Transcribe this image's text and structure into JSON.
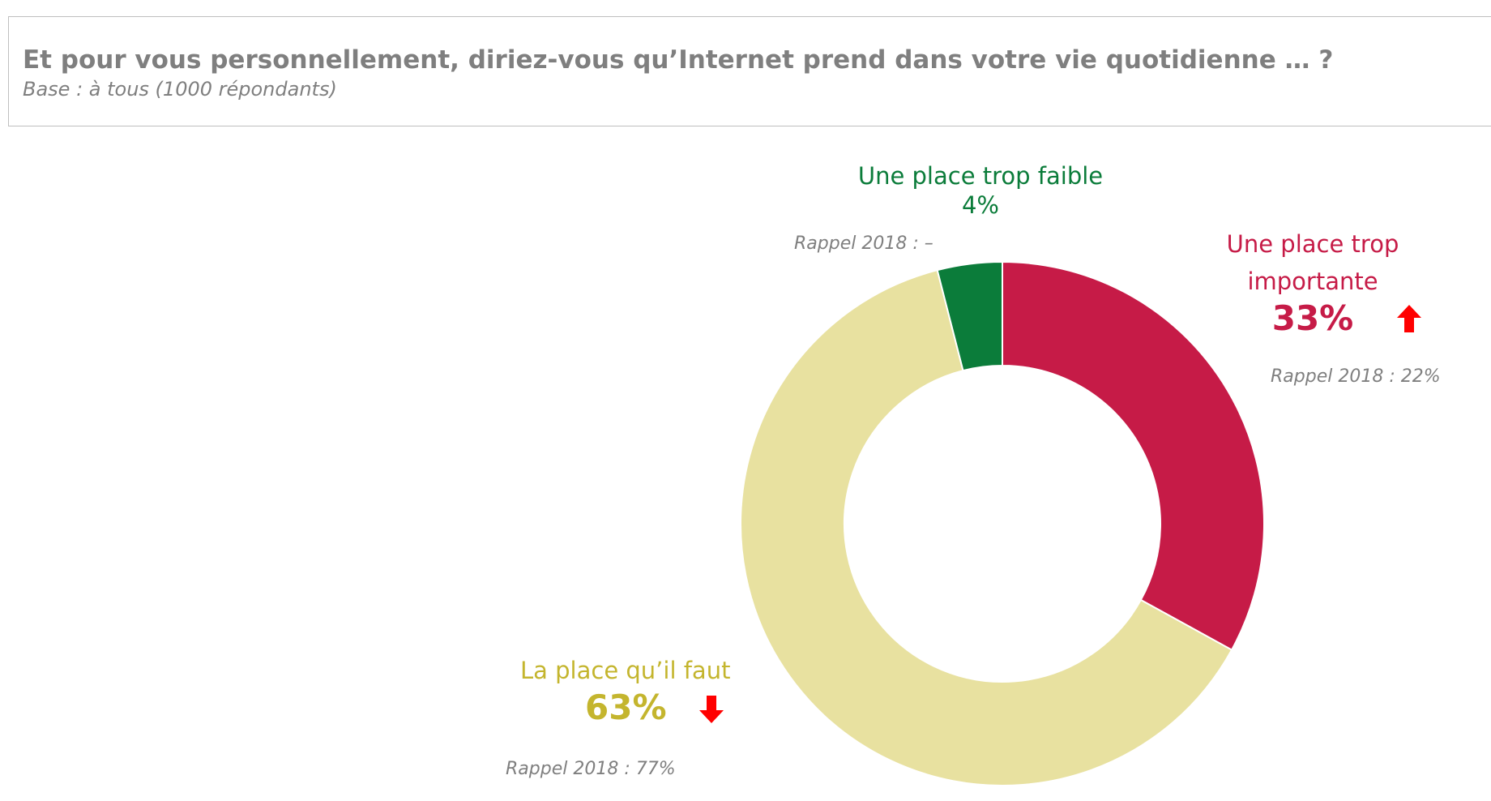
{
  "header": {
    "title": "Et pour vous personnellement, diriez-vous qu’Internet prend dans votre vie quotidienne … ?",
    "subtitle": "Base : à tous (1000 répondants)"
  },
  "labels": {
    "faible": {
      "name": "Une place trop faible",
      "value": "4%",
      "rappel": "Rappel 2018 : –"
    },
    "importante": {
      "name_line1": "Une place trop",
      "name_line2": "importante",
      "value": "33%",
      "rappel": "Rappel 2018 : 22%",
      "trend": "up"
    },
    "faut": {
      "name": "La place qu’il faut",
      "value": "63%",
      "rappel": "Rappel 2018 : 77%",
      "trend": "down"
    }
  },
  "chart_data": {
    "type": "pie",
    "variant": "donut",
    "title": "Et pour vous personnellement, diriez-vous qu’Internet prend dans votre vie quotidienne … ?",
    "categories": [
      "Une place trop importante",
      "La place qu’il faut",
      "Une place trop faible"
    ],
    "values": [
      33,
      63,
      4
    ],
    "unit": "%",
    "colors": [
      "#c61b47",
      "#e8e1a0",
      "#0b7c3a"
    ],
    "label_colors": [
      "#c61b47",
      "#c4b52e",
      "#0b7c3a"
    ],
    "previous_2018": [
      "22%",
      "77%",
      "–"
    ],
    "trend_arrows": [
      "up",
      "down",
      null
    ],
    "arrow_color": "#ff0000"
  }
}
